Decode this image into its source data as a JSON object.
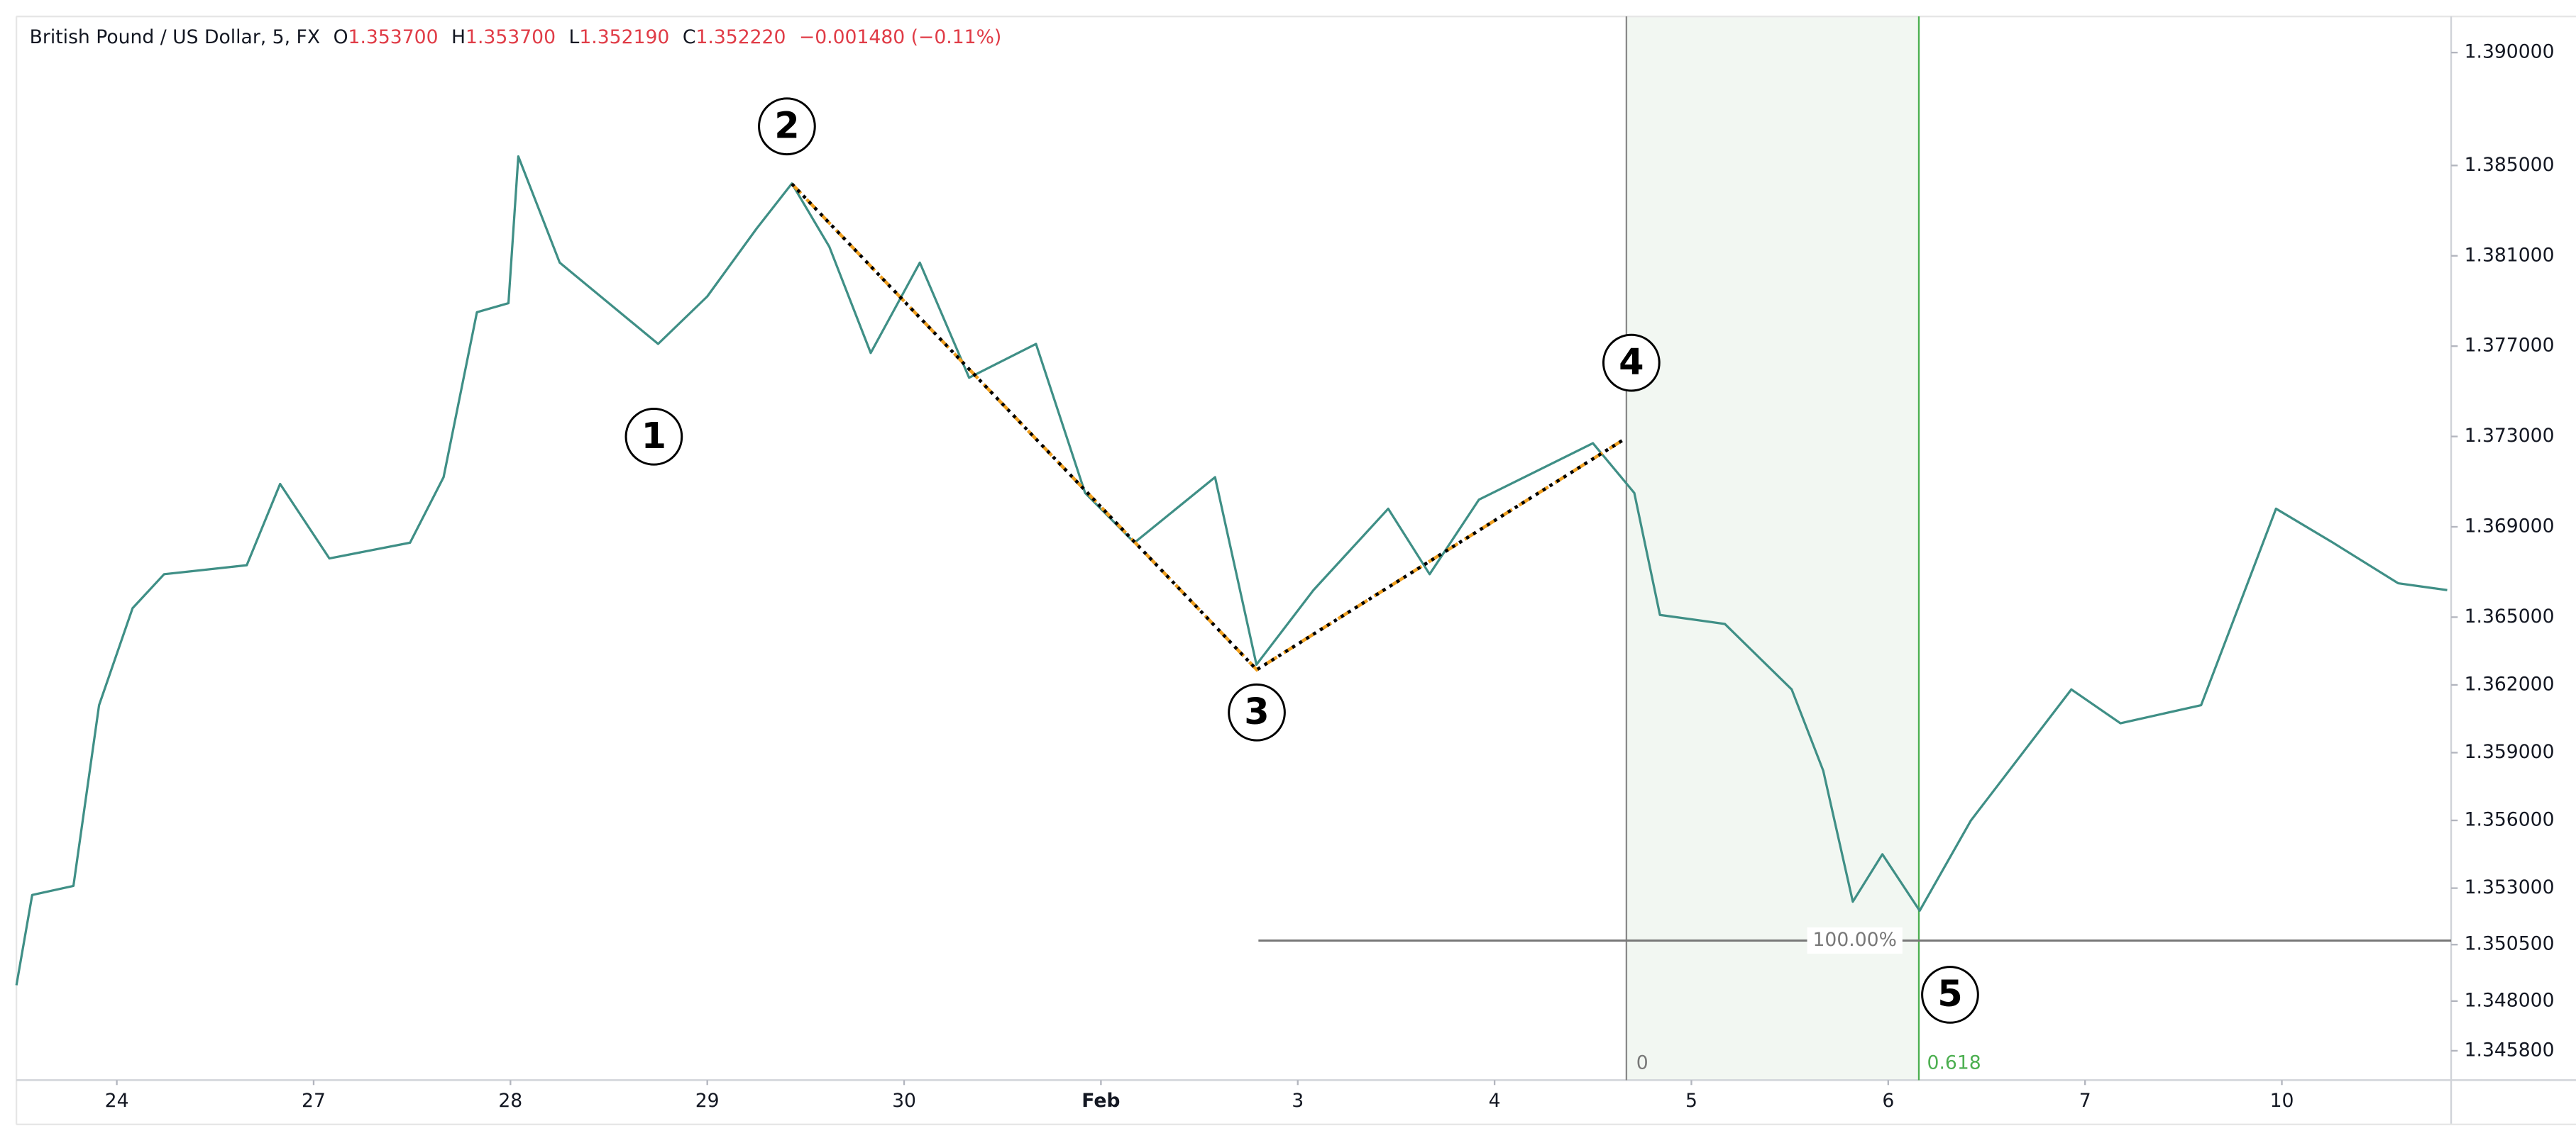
{
  "header": {
    "symbol": "British Pound / US Dollar, 5, FX",
    "fields": [
      {
        "label": "O",
        "value": "1.353700"
      },
      {
        "label": "H",
        "value": "1.353700"
      },
      {
        "label": "L",
        "value": "1.352190"
      },
      {
        "label": "C",
        "value": "1.352220"
      }
    ],
    "change": "−0.001480 (−0.11%)"
  },
  "waves": [
    "1",
    "2",
    "3",
    "4",
    "5"
  ],
  "fib": {
    "level_100": "100.00%",
    "start": "0",
    "end": "0.618"
  },
  "chart_data": {
    "type": "line",
    "color": "#3f8f86",
    "x": [
      -0.51,
      -0.43,
      -0.22,
      -0.09,
      0.08,
      0.24,
      0.66,
      0.83,
      1.08,
      1.49,
      1.66,
      1.83,
      1.99,
      2.04,
      2.25,
      2.5,
      2.75,
      3.0,
      3.25,
      3.43,
      3.62,
      3.83,
      4.08,
      4.33,
      4.67,
      4.92,
      5.17,
      5.58,
      5.79,
      6.08,
      6.46,
      6.67,
      6.92,
      7.5,
      7.71,
      7.84,
      8.17,
      8.51,
      8.67,
      8.82,
      8.97,
      9.16,
      9.42,
      9.93,
      10.18,
      10.59,
      10.97,
      11.26,
      11.59,
      11.84
    ],
    "values": [
      1.3487,
      1.3527,
      1.3531,
      1.3611,
      1.3654,
      1.3669,
      1.3673,
      1.3709,
      1.3676,
      1.3683,
      1.3712,
      1.3785,
      1.3789,
      1.3854,
      1.3807,
      1.3789,
      1.3771,
      1.3792,
      1.3822,
      1.3842,
      1.3814,
      1.3767,
      1.3807,
      1.3756,
      1.3771,
      1.3705,
      1.3683,
      1.3712,
      1.3629,
      1.3662,
      1.3698,
      1.3669,
      1.3702,
      1.3727,
      1.3705,
      1.3651,
      1.3647,
      1.3618,
      1.3582,
      1.3524,
      1.3545,
      1.352,
      1.356,
      1.3618,
      1.3603,
      1.3611,
      1.3698,
      1.3683,
      1.3665,
      1.3662
    ],
    "xlim": [
      -0.51,
      11.86
    ],
    "xticks": [
      {
        "value": 0,
        "label": "24"
      },
      {
        "value": 1,
        "label": "27"
      },
      {
        "value": 2,
        "label": "28"
      },
      {
        "value": 3,
        "label": "29"
      },
      {
        "value": 4,
        "label": "30"
      },
      {
        "value": 5,
        "label": "Feb"
      },
      {
        "value": 6,
        "label": "3"
      },
      {
        "value": 7,
        "label": "4"
      },
      {
        "value": 8,
        "label": "5"
      },
      {
        "value": 9,
        "label": "6"
      },
      {
        "value": 10,
        "label": "7"
      },
      {
        "value": 11,
        "label": "10"
      }
    ],
    "ylim": [
      1.3445,
      1.3916
    ],
    "yticks": [
      {
        "value": 1.39,
        "label": "1.390000"
      },
      {
        "value": 1.385,
        "label": "1.385000"
      },
      {
        "value": 1.381,
        "label": "1.381000"
      },
      {
        "value": 1.377,
        "label": "1.377000"
      },
      {
        "value": 1.373,
        "label": "1.373000"
      },
      {
        "value": 1.369,
        "label": "1.369000"
      },
      {
        "value": 1.365,
        "label": "1.365000"
      },
      {
        "value": 1.362,
        "label": "1.362000"
      },
      {
        "value": 1.359,
        "label": "1.359000"
      },
      {
        "value": 1.356,
        "label": "1.356000"
      },
      {
        "value": 1.353,
        "label": "1.353000"
      },
      {
        "value": 1.3505,
        "label": "1.350500"
      },
      {
        "value": 1.348,
        "label": "1.348000"
      },
      {
        "value": 1.3458,
        "label": "1.345800"
      }
    ]
  }
}
